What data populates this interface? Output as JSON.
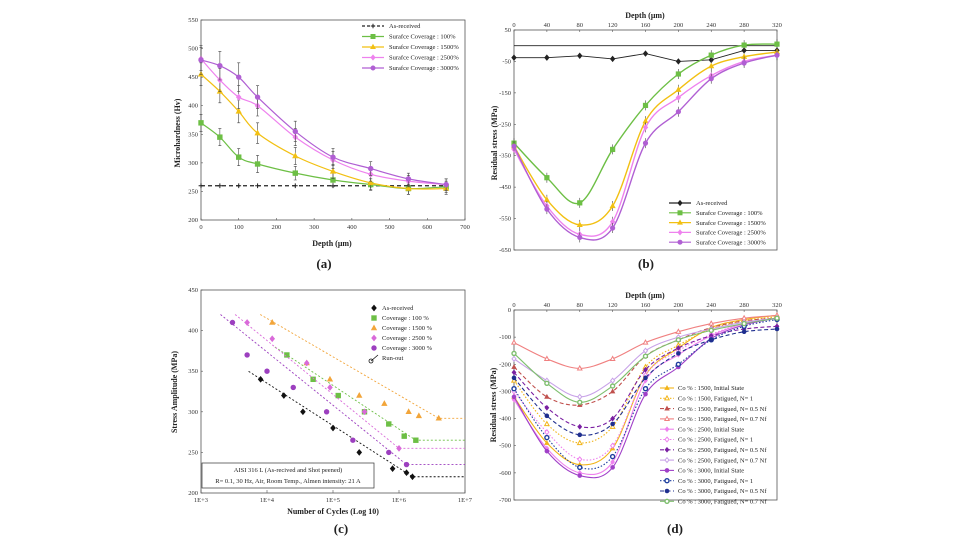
{
  "chart_data": [
    {
      "id": "a",
      "type": "line",
      "panel_label": "(a)",
      "xlabel": "Depth (μm)",
      "ylabel": "Microhardness (Hv)",
      "xlim": [
        0,
        700
      ],
      "ylim": [
        200,
        550
      ],
      "xticks": [
        0,
        100,
        200,
        300,
        400,
        500,
        600,
        700
      ],
      "yticks": [
        200,
        250,
        300,
        350,
        400,
        450,
        500,
        550
      ],
      "legend_position": "top-right",
      "series": [
        {
          "name": "As-received",
          "color": "#222222",
          "marker": "plus",
          "dashed": true,
          "x": [
            0,
            50,
            100,
            150,
            250,
            350,
            450,
            550,
            650
          ],
          "y": [
            260,
            260,
            260,
            260,
            260,
            260,
            260,
            260,
            260
          ]
        },
        {
          "name": "Surafce Coverage : 100%",
          "color": "#6dbf45",
          "marker": "square",
          "x": [
            0,
            50,
            100,
            150,
            250,
            350,
            450,
            550,
            650
          ],
          "y": [
            370,
            345,
            310,
            298,
            282,
            270,
            262,
            255,
            258
          ],
          "err": [
            15,
            15,
            15,
            15,
            12,
            12,
            10,
            10,
            10
          ]
        },
        {
          "name": "Surafce Coverage : 1500%",
          "color": "#f2c012",
          "marker": "triangle",
          "x": [
            0,
            50,
            100,
            150,
            250,
            350,
            450,
            550,
            650
          ],
          "y": [
            455,
            425,
            390,
            352,
            312,
            285,
            265,
            255,
            255
          ],
          "err": [
            20,
            20,
            20,
            18,
            15,
            12,
            12,
            10,
            10
          ]
        },
        {
          "name": "Surafce Coverage : 2500%",
          "color": "#ee82ee",
          "marker": "diamond",
          "x": [
            0,
            50,
            100,
            150,
            250,
            350,
            450,
            550,
            650
          ],
          "y": [
            482,
            445,
            415,
            400,
            345,
            305,
            280,
            268,
            262
          ],
          "err": [
            20,
            20,
            20,
            18,
            15,
            15,
            12,
            10,
            10
          ]
        },
        {
          "name": "Surafce Coverage : 3000%",
          "color": "#b05fd3",
          "marker": "circle",
          "x": [
            0,
            50,
            100,
            150,
            250,
            350,
            450,
            550,
            650
          ],
          "y": [
            480,
            470,
            450,
            415,
            355,
            310,
            290,
            272,
            262
          ],
          "err": [
            25,
            25,
            25,
            20,
            18,
            15,
            12,
            10,
            10
          ]
        }
      ]
    },
    {
      "id": "b",
      "type": "line",
      "panel_label": "(b)",
      "xlabel": "Depth (μm)",
      "ylabel": "Residual stress (MPa)",
      "xlim": [
        0,
        320
      ],
      "ylim": [
        -650,
        50
      ],
      "xticks": [
        0,
        40,
        80,
        120,
        160,
        200,
        240,
        280,
        320
      ],
      "yticks": [
        50,
        -50,
        -150,
        -250,
        -350,
        -450,
        -550,
        -650
      ],
      "legend_position": "bottom-right",
      "series": [
        {
          "name": "As-received",
          "color": "#222222",
          "marker": "diamond",
          "x": [
            0,
            40,
            80,
            120,
            160,
            200,
            240,
            280,
            320
          ],
          "y": [
            -38,
            -38,
            -32,
            -42,
            -25,
            -50,
            -45,
            -15,
            -15
          ]
        },
        {
          "name": "Surafce Coverage : 100%",
          "color": "#6dbf45",
          "marker": "square",
          "x": [
            0,
            40,
            80,
            120,
            160,
            200,
            240,
            280,
            320
          ],
          "y": [
            -310,
            -420,
            -500,
            -330,
            -190,
            -90,
            -30,
            2,
            5
          ]
        },
        {
          "name": "Surafce Coverage : 1500%",
          "color": "#f2c012",
          "marker": "triangle",
          "x": [
            0,
            40,
            80,
            120,
            160,
            200,
            240,
            280,
            320
          ],
          "y": [
            -320,
            -490,
            -570,
            -510,
            -240,
            -140,
            -65,
            -35,
            -20
          ]
        },
        {
          "name": "Surafce Coverage : 2500%",
          "color": "#ee82ee",
          "marker": "diamond",
          "x": [
            0,
            40,
            80,
            120,
            160,
            200,
            240,
            280,
            320
          ],
          "y": [
            -330,
            -510,
            -600,
            -560,
            -260,
            -165,
            -95,
            -50,
            -30
          ]
        },
        {
          "name": "Surafce Coverage : 3000%",
          "color": "#b05fd3",
          "marker": "circle",
          "x": [
            0,
            40,
            80,
            120,
            160,
            200,
            240,
            280,
            320
          ],
          "y": [
            -320,
            -520,
            -610,
            -580,
            -310,
            -210,
            -105,
            -55,
            -30
          ]
        }
      ]
    },
    {
      "id": "c",
      "type": "scatter",
      "panel_label": "(c)",
      "xlabel": "Number of Cycles (Log 10)",
      "ylabel": "Stress Amplitude (MPa)",
      "xscale": "log",
      "xlim": [
        1000,
        10000000
      ],
      "ylim": [
        200,
        450
      ],
      "xtick_labels": [
        "1E+3",
        "1E+4",
        "1E+5",
        "1E+6",
        "1E+7"
      ],
      "yticks": [
        200,
        250,
        300,
        350,
        400,
        450
      ],
      "legend_position": "top-right",
      "annotation": [
        "AISI 316 L (As-recived and Shot peened)",
        "R= 0.1, 30 Hz, Air, Room Temp., Almen intensity: 21 A"
      ],
      "series": [
        {
          "name": "As-received",
          "color": "#111111",
          "marker": "diamond",
          "x": [
            8000,
            18000,
            35000,
            100000,
            250000,
            800000,
            1300000,
            1600000
          ],
          "y": [
            340,
            320,
            300,
            280,
            250,
            230,
            225,
            220
          ]
        },
        {
          "name": "Coverage : 100 %",
          "color": "#6dbf45",
          "marker": "square",
          "x": [
            20000,
            50000,
            120000,
            300000,
            700000,
            1200000,
            1800000
          ],
          "y": [
            370,
            340,
            320,
            300,
            285,
            270,
            265
          ]
        },
        {
          "name": "Coverage : 1500 %",
          "color": "#f2a53a",
          "marker": "triangle",
          "x": [
            12000,
            40000,
            90000,
            250000,
            600000,
            1400000,
            2000000,
            4000000
          ],
          "y": [
            410,
            360,
            340,
            320,
            310,
            300,
            295,
            292
          ]
        },
        {
          "name": "Coverage : 2500 %",
          "color": "#d96ad9",
          "marker": "diamond",
          "x": [
            5000,
            12000,
            40000,
            90000,
            300000,
            1000000
          ],
          "y": [
            410,
            390,
            360,
            330,
            300,
            255
          ]
        },
        {
          "name": "Coverage : 3000 %",
          "color": "#9c3fbf",
          "marker": "circle",
          "x": [
            3000,
            5000,
            10000,
            25000,
            80000,
            200000,
            700000,
            1300000
          ],
          "y": [
            410,
            370,
            350,
            330,
            300,
            265,
            250,
            235
          ]
        }
      ],
      "runout_label": "Run-out"
    },
    {
      "id": "d",
      "type": "line",
      "panel_label": "(d)",
      "xlabel": "Depth (μm)",
      "ylabel": "Residual stress (MPa)",
      "xlim": [
        0,
        320
      ],
      "ylim": [
        -700,
        0
      ],
      "xticks": [
        0,
        40,
        80,
        120,
        160,
        200,
        240,
        280,
        320
      ],
      "yticks": [
        0,
        -100,
        -200,
        -300,
        -400,
        -500,
        -600,
        -700
      ],
      "legend_position": "bottom-right",
      "series": [
        {
          "name": "Co % : 1500, Initial State",
          "color": "#f2b418",
          "style": "solid",
          "marker": "triangle",
          "y": [
            -320,
            -490,
            -570,
            -510,
            -240,
            -140,
            -65,
            -35,
            -20
          ]
        },
        {
          "name": "Co % : 1500, Fatigued, N= 1",
          "color": "#f2b418",
          "style": "dotted",
          "marker": "triangle-open",
          "y": [
            -260,
            -420,
            -490,
            -430,
            -210,
            -130,
            -70,
            -40,
            -25
          ]
        },
        {
          "name": "Co % : 1500, Fatigued, N= 0.5 Nf",
          "color": "#c0504d",
          "style": "dashed",
          "marker": "triangle",
          "y": [
            -210,
            -320,
            -350,
            -300,
            -170,
            -110,
            -65,
            -40,
            -30
          ]
        },
        {
          "name": "Co % : 1500, Fatigued, N= 0.7 Nf",
          "color": "#f08080",
          "style": "solid",
          "marker": "triangle-open",
          "y": [
            -120,
            -180,
            -215,
            -180,
            -120,
            -80,
            -50,
            -30,
            -20
          ]
        },
        {
          "name": "Co % : 2500, Initial State",
          "color": "#ee82ee",
          "style": "solid",
          "marker": "diamond",
          "y": [
            -330,
            -510,
            -600,
            -560,
            -260,
            -165,
            -95,
            -50,
            -30
          ]
        },
        {
          "name": "Co % : 2500, Fatigued, N= 1",
          "color": "#ee82ee",
          "style": "dotted",
          "marker": "diamond-open",
          "y": [
            -300,
            -450,
            -550,
            -500,
            -240,
            -150,
            -90,
            -50,
            -30
          ]
        },
        {
          "name": "Co % : 2500, Fatigued, N= 0.5 Nf",
          "color": "#7a1fa2",
          "style": "dashed",
          "marker": "diamond",
          "y": [
            -230,
            -360,
            -430,
            -400,
            -220,
            -140,
            -95,
            -70,
            -60
          ]
        },
        {
          "name": "Co % : 2500, Fatigued, N= 0.7 Nf",
          "color": "#c8a2e8",
          "style": "solid",
          "marker": "diamond-open",
          "y": [
            -180,
            -260,
            -320,
            -260,
            -150,
            -100,
            -70,
            -45,
            -30
          ]
        },
        {
          "name": "Co % : 3000, Initial State",
          "color": "#a040c8",
          "style": "solid",
          "marker": "circle",
          "y": [
            -320,
            -520,
            -610,
            -580,
            -310,
            -210,
            -105,
            -55,
            -30
          ]
        },
        {
          "name": "Co % : 3000, Fatigued, N= 1",
          "color": "#1f3f9f",
          "style": "dotted",
          "marker": "circle-open",
          "y": [
            -290,
            -470,
            -580,
            -540,
            -290,
            -200,
            -110,
            -60,
            -35
          ]
        },
        {
          "name": "Co % : 3000, Fatigued, N= 0.5 Nf",
          "color": "#1f2f8f",
          "style": "dashed",
          "marker": "circle",
          "y": [
            -250,
            -390,
            -460,
            -420,
            -250,
            -160,
            -110,
            -80,
            -70
          ]
        },
        {
          "name": "Co % : 3000, Fatigued, N= 0.7 Nf",
          "color": "#7fbf6f",
          "style": "solid",
          "marker": "circle-open",
          "y": [
            -160,
            -270,
            -340,
            -280,
            -170,
            -110,
            -75,
            -50,
            -30
          ]
        }
      ],
      "x": [
        0,
        40,
        80,
        120,
        160,
        200,
        240,
        280,
        320
      ]
    }
  ]
}
